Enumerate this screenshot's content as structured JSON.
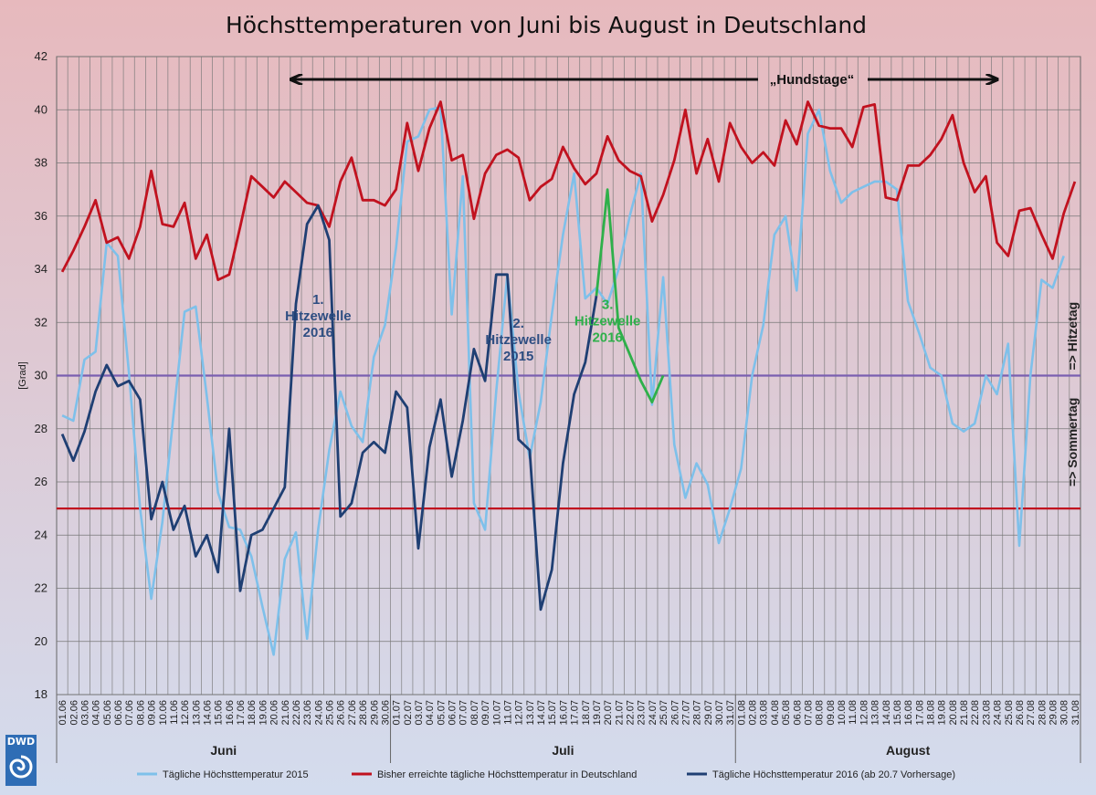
{
  "colors": {
    "bg_top": "#e7b9bd",
    "bg_bottom": "#d3dcee",
    "s2015": "#7ec0ea",
    "record": "#c1121f",
    "s2016": "#1f3f73",
    "forecast": "#2eb04a",
    "hitzetag_line": "#7a5fb0",
    "sommertag_line": "#c1121f",
    "hundstage_ann": "#111111",
    "ann_2016_1": "#2e4e82",
    "ann_2015": "#2e4e82",
    "ann_2016_3": "#2eb04a"
  },
  "chart_data": {
    "type": "line",
    "title": "Höchsttemperaturen von Juni bis August in Deutschland",
    "ylabel": "[Grad]",
    "xlabel": "",
    "ylim": [
      18,
      42
    ],
    "yticks": [
      18,
      20,
      22,
      24,
      26,
      28,
      30,
      32,
      34,
      36,
      38,
      40,
      42
    ],
    "grid": true,
    "months": [
      "Juni",
      "Juli",
      "August"
    ],
    "x": [
      "01.06",
      "02.06",
      "03.06",
      "04.06",
      "05.06",
      "06.06",
      "07.06",
      "08.06",
      "09.06",
      "10.06",
      "11.06",
      "12.06",
      "13.06",
      "14.06",
      "15.06",
      "16.06",
      "17.06",
      "18.06",
      "19.06",
      "20.06",
      "21.06",
      "22.06",
      "23.06",
      "24.06",
      "25.06",
      "26.06",
      "27.06",
      "28.06",
      "29.06",
      "30.06",
      "01.07",
      "02.07",
      "03.07",
      "04.07",
      "05.07",
      "06.07",
      "07.07",
      "08.07",
      "09.07",
      "10.07",
      "11.07",
      "12.07",
      "13.07",
      "14.07",
      "15.07",
      "16.07",
      "17.07",
      "18.07",
      "19.07",
      "20.07",
      "21.07",
      "22.07",
      "23.07",
      "24.07",
      "25.07",
      "26.07",
      "27.07",
      "28.07",
      "29.07",
      "30.07",
      "31.07",
      "01.08",
      "02.08",
      "03.08",
      "04.08",
      "05.08",
      "06.08",
      "07.08",
      "08.08",
      "09.08",
      "10.08",
      "11.08",
      "12.08",
      "13.08",
      "14.08",
      "15.08",
      "16.08",
      "17.08",
      "18.08",
      "19.08",
      "20.08",
      "21.08",
      "22.08",
      "23.08",
      "24.08",
      "25.08",
      "26.08",
      "27.08",
      "28.08",
      "29.08",
      "30.08",
      "31.08"
    ],
    "series": [
      {
        "name": "Tägliche Höchsttemperatur 2015",
        "key": "s2015",
        "values": [
          28.5,
          28.3,
          30.6,
          30.9,
          35,
          34.5,
          30.1,
          25,
          21.6,
          24.5,
          28.5,
          32.4,
          32.6,
          29.2,
          25.6,
          24.3,
          24.2,
          23.2,
          21.3,
          19.5,
          23.1,
          24.1,
          20.1,
          24.2,
          27.2,
          29.4,
          28.1,
          27.5,
          30.7,
          31.9,
          34.8,
          38.8,
          39.0,
          40.0,
          40.1,
          32.3,
          37.5,
          25.2,
          24.2,
          29.4,
          33.8,
          29.4,
          26.9,
          29.0,
          32.3,
          35.3,
          37.6,
          32.9,
          33.3,
          32.7,
          34.0,
          36.0,
          37.6,
          28.9,
          33.7,
          27.4,
          25.4,
          26.7,
          25.9,
          23.7,
          25.0,
          26.5,
          30.0,
          31.9,
          35.3,
          36.0,
          33.2,
          39.1,
          40.0,
          37.7,
          36.5,
          36.9,
          37.1,
          37.3,
          37.3,
          37.0,
          32.8,
          31.6,
          30.3,
          30.0,
          28.2,
          27.9,
          28.2,
          30.0,
          29.3,
          31.2,
          23.6,
          30.0,
          33.6,
          33.3,
          34.5,
          null
        ]
      },
      {
        "name": "Bisher erreichte tägliche Höchsttemperatur in Deutschland",
        "key": "record",
        "values": [
          33.9,
          34.7,
          35.6,
          36.6,
          35.0,
          35.2,
          34.4,
          35.6,
          37.7,
          35.7,
          35.6,
          36.5,
          34.4,
          35.3,
          33.6,
          33.8,
          35.6,
          37.5,
          37.1,
          36.7,
          37.3,
          36.9,
          36.5,
          36.4,
          35.6,
          37.3,
          38.2,
          36.6,
          36.6,
          36.4,
          37.0,
          39.5,
          37.7,
          39.3,
          40.3,
          38.1,
          38.3,
          35.9,
          37.6,
          38.3,
          38.5,
          38.2,
          36.6,
          37.1,
          37.4,
          38.6,
          37.8,
          37.2,
          37.6,
          39.0,
          38.1,
          37.7,
          37.5,
          35.8,
          36.8,
          38.1,
          40.0,
          37.6,
          38.9,
          37.3,
          39.5,
          38.6,
          38.0,
          38.4,
          37.9,
          39.6,
          38.7,
          40.3,
          39.4,
          39.3,
          39.3,
          38.6,
          40.1,
          40.2,
          36.7,
          36.6,
          37.9,
          37.9,
          38.3,
          38.9,
          39.8,
          38.0,
          36.9,
          37.5,
          35.0,
          34.5,
          36.2,
          36.3,
          35.3,
          34.4,
          36.1,
          37.3
        ]
      },
      {
        "name": "Tägliche Höchsttemperatur 2016 (ab 20.7 Vorhersage)",
        "key": "s2016",
        "values": [
          27.8,
          26.8,
          27.9,
          29.4,
          30.4,
          29.6,
          29.8,
          29.1,
          24.6,
          26.0,
          24.2,
          25.1,
          23.2,
          24.0,
          22.6,
          28.0,
          21.9,
          24.0,
          24.2,
          25.0,
          25.8,
          32.7,
          35.7,
          36.4,
          35.1,
          24.7,
          25.2,
          27.1,
          27.5,
          27.1,
          29.4,
          28.8,
          23.5,
          27.3,
          29.1,
          26.2,
          28.3,
          31.0,
          29.8,
          33.8,
          33.8,
          27.6,
          27.2,
          21.2,
          22.7,
          26.7,
          29.3,
          30.5,
          33.0,
          null,
          null,
          null,
          null,
          null,
          null,
          null,
          null,
          null,
          null,
          null,
          null,
          null,
          null,
          null,
          null,
          null,
          null,
          null,
          null,
          null,
          null,
          null,
          null,
          null,
          null,
          null,
          null,
          null,
          null,
          null,
          null,
          null,
          null,
          null,
          null,
          null,
          null,
          null,
          null,
          null,
          null,
          null
        ]
      },
      {
        "name": "",
        "key": "forecast",
        "values": [
          null,
          null,
          null,
          null,
          null,
          null,
          null,
          null,
          null,
          null,
          null,
          null,
          null,
          null,
          null,
          null,
          null,
          null,
          null,
          null,
          null,
          null,
          null,
          null,
          null,
          null,
          null,
          null,
          null,
          null,
          null,
          null,
          null,
          null,
          null,
          null,
          null,
          null,
          null,
          null,
          null,
          null,
          null,
          null,
          null,
          null,
          null,
          null,
          33.0,
          37.0,
          31.8,
          30.8,
          29.8,
          29.0,
          30.0,
          null,
          null,
          null,
          null,
          null,
          null,
          null,
          null,
          null,
          null,
          null,
          null,
          null,
          null,
          null,
          null,
          null,
          null,
          null,
          null,
          null,
          null,
          null,
          null,
          null,
          null,
          null,
          null,
          null,
          null,
          null,
          null,
          null,
          null,
          null,
          null,
          null
        ]
      }
    ],
    "thresholds": [
      {
        "label": "=> Hitzetag",
        "value": 30
      },
      {
        "label": "=> Sommertag",
        "value": 25
      }
    ],
    "annotations": [
      {
        "lines": [
          "„Hundstage“"
        ],
        "key": "hundstage_ann"
      },
      {
        "lines": [
          "1.",
          "Hitzewelle",
          "2016"
        ],
        "key": "ann_2016_1"
      },
      {
        "lines": [
          "2.",
          "Hitzewelle",
          "2015"
        ],
        "key": "ann_2015"
      },
      {
        "lines": [
          "3.",
          "Hitzewelle",
          "2016"
        ],
        "key": "ann_2016_3"
      }
    ],
    "legend": [
      {
        "label": "Tägliche Höchsttemperatur 2015",
        "key": "s2015"
      },
      {
        "label": "Bisher erreichte tägliche Höchsttemperatur in Deutschland",
        "key": "record"
      },
      {
        "label": "Tägliche Höchsttemperatur 2016 (ab 20.7 Vorhersage)",
        "key": "s2016"
      }
    ]
  },
  "logo": {
    "text": "DWD"
  }
}
